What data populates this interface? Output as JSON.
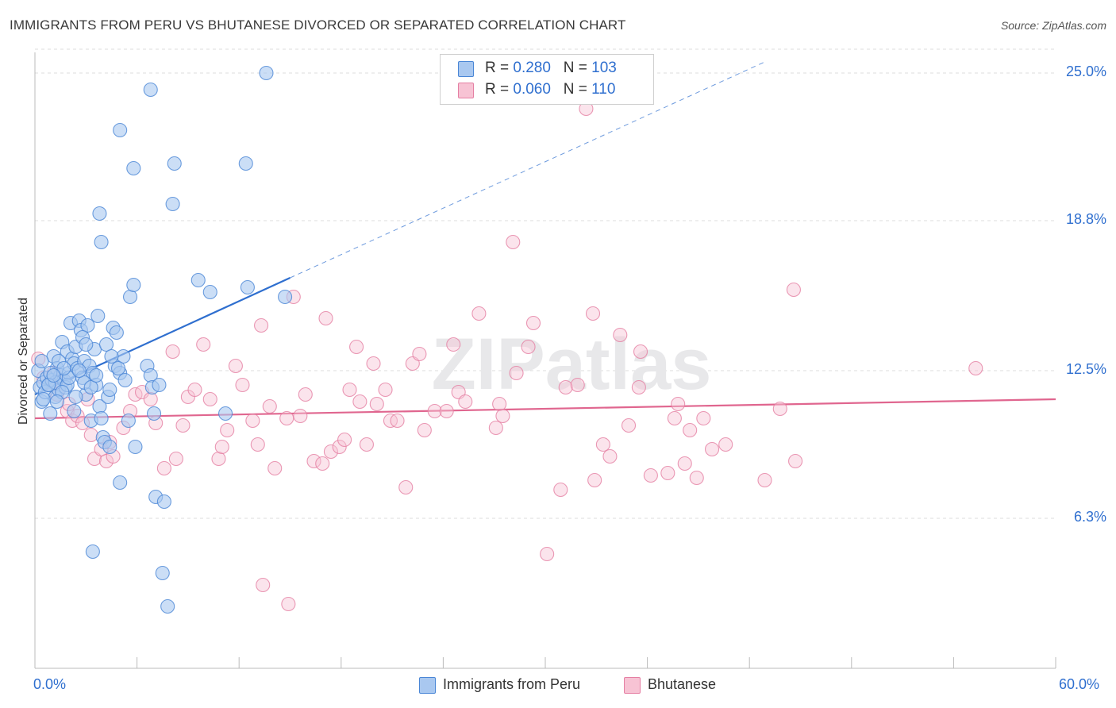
{
  "title": "IMMIGRANTS FROM PERU VS BHUTANESE DIVORCED OR SEPARATED CORRELATION CHART",
  "source": "Source: ZipAtlas.com",
  "watermark": "ZIPatlas",
  "legend": {
    "rows": [
      {
        "r_label": "R = ",
        "r_value": "0.280",
        "n_label": "N = ",
        "n_value": "103",
        "color": "#a9c8f0"
      },
      {
        "r_label": "R = ",
        "r_value": "0.060",
        "n_label": "N = ",
        "n_value": "110",
        "color": "#f5b8cc"
      }
    ]
  },
  "bottom_legend": [
    {
      "label": "Immigrants from Peru",
      "color": "#a9c8f0"
    },
    {
      "label": "Bhutanese",
      "color": "#f5b8cc"
    }
  ],
  "chart_data": {
    "type": "scatter",
    "xlabel": "",
    "ylabel": "Divorced or Separated",
    "x_tick_labels": [
      "0.0%",
      "60.0%"
    ],
    "y_tick_labels": [
      "25.0%",
      "18.8%",
      "12.5%",
      "6.3%"
    ],
    "xlim": [
      0,
      60
    ],
    "ylim": [
      0,
      26
    ],
    "y_ticks": [
      25.0,
      18.8,
      12.5,
      6.3
    ],
    "colors": {
      "peru_fill": "#a9c8f0",
      "peru_stroke": "#4a86d6",
      "peru_line": "#2f6fcf",
      "bhutan_fill": "#f7c3d4",
      "bhutan_stroke": "#e57fa3",
      "bhutan_line": "#e0668f"
    },
    "series": [
      {
        "name": "Immigrants from Peru",
        "trend": {
          "x": [
            0,
            15
          ],
          "y": [
            11.5,
            16.4
          ],
          "dashed_to": [
            43,
            25.5
          ]
        },
        "points": [
          [
            0.2,
            12.5
          ],
          [
            0.3,
            11.8
          ],
          [
            0.4,
            11.2
          ],
          [
            0.5,
            12.0
          ],
          [
            0.6,
            11.6
          ],
          [
            0.7,
            12.2
          ],
          [
            0.8,
            11.9
          ],
          [
            0.9,
            10.7
          ],
          [
            1.0,
            12.1
          ],
          [
            1.1,
            13.1
          ],
          [
            1.2,
            11.4
          ],
          [
            1.3,
            12.6
          ],
          [
            1.4,
            11.7
          ],
          [
            1.5,
            12.3
          ],
          [
            1.6,
            13.7
          ],
          [
            1.7,
            12.1
          ],
          [
            1.8,
            11.8
          ],
          [
            1.9,
            13.3
          ],
          [
            2.0,
            12.4
          ],
          [
            2.1,
            14.5
          ],
          [
            2.2,
            13.0
          ],
          [
            2.3,
            12.8
          ],
          [
            2.4,
            13.5
          ],
          [
            2.5,
            12.6
          ],
          [
            2.6,
            14.6
          ],
          [
            2.7,
            14.2
          ],
          [
            2.8,
            12.2
          ],
          [
            2.9,
            12.9
          ],
          [
            3.0,
            11.5
          ],
          [
            3.1,
            14.4
          ],
          [
            3.2,
            12.7
          ],
          [
            3.3,
            10.4
          ],
          [
            3.4,
            12.4
          ],
          [
            3.5,
            13.4
          ],
          [
            3.6,
            11.9
          ],
          [
            3.7,
            14.8
          ],
          [
            3.8,
            11.0
          ],
          [
            3.9,
            10.5
          ],
          [
            4.0,
            9.7
          ],
          [
            4.1,
            9.5
          ],
          [
            4.2,
            13.6
          ],
          [
            4.3,
            11.4
          ],
          [
            4.4,
            11.7
          ],
          [
            4.6,
            14.3
          ],
          [
            4.7,
            12.7
          ],
          [
            4.8,
            14.1
          ],
          [
            5.0,
            12.4
          ],
          [
            5.2,
            13.1
          ],
          [
            5.3,
            12.1
          ],
          [
            5.5,
            10.4
          ],
          [
            5.6,
            15.6
          ],
          [
            5.8,
            16.1
          ],
          [
            5.0,
            7.8
          ],
          [
            5.9,
            9.3
          ],
          [
            6.6,
            12.7
          ],
          [
            6.8,
            12.3
          ],
          [
            6.9,
            11.8
          ],
          [
            7.0,
            10.7
          ],
          [
            7.3,
            11.9
          ],
          [
            7.1,
            7.2
          ],
          [
            7.6,
            7.0
          ],
          [
            7.5,
            4.0
          ],
          [
            7.8,
            2.6
          ],
          [
            3.4,
            4.9
          ],
          [
            3.8,
            19.1
          ],
          [
            3.9,
            17.9
          ],
          [
            5.0,
            22.6
          ],
          [
            5.8,
            21.0
          ],
          [
            6.8,
            24.3
          ],
          [
            8.2,
            21.2
          ],
          [
            8.1,
            19.5
          ],
          [
            9.6,
            16.3
          ],
          [
            10.3,
            15.8
          ],
          [
            11.2,
            10.7
          ],
          [
            12.4,
            21.2
          ],
          [
            12.5,
            16.0
          ],
          [
            13.6,
            25.0
          ],
          [
            14.7,
            15.6
          ],
          [
            0.5,
            11.3
          ],
          [
            1.2,
            12.0
          ],
          [
            1.9,
            11.9
          ],
          [
            2.3,
            10.8
          ],
          [
            0.9,
            12.4
          ],
          [
            1.4,
            12.9
          ],
          [
            2.0,
            12.2
          ],
          [
            2.9,
            12.0
          ],
          [
            1.7,
            12.6
          ],
          [
            3.3,
            11.8
          ],
          [
            2.6,
            12.5
          ],
          [
            4.5,
            13.1
          ],
          [
            0.4,
            12.9
          ],
          [
            1.6,
            11.6
          ],
          [
            2.4,
            11.4
          ],
          [
            3.6,
            12.3
          ],
          [
            0.8,
            11.9
          ],
          [
            1.1,
            12.3
          ],
          [
            4.9,
            12.6
          ],
          [
            1.3,
            11.2
          ],
          [
            2.8,
            13.9
          ],
          [
            3.0,
            13.6
          ],
          [
            4.4,
            9.3
          ]
        ]
      },
      {
        "name": "Bhutanese",
        "trend": {
          "x": [
            0,
            60
          ],
          "y": [
            10.5,
            11.3
          ]
        },
        "points": [
          [
            0.2,
            13.0
          ],
          [
            0.5,
            12.2
          ],
          [
            0.9,
            11.9
          ],
          [
            1.1,
            12.4
          ],
          [
            1.3,
            11.5
          ],
          [
            1.7,
            12.1
          ],
          [
            1.9,
            10.8
          ],
          [
            2.0,
            11.1
          ],
          [
            2.2,
            10.4
          ],
          [
            2.5,
            10.6
          ],
          [
            2.8,
            10.3
          ],
          [
            3.1,
            11.3
          ],
          [
            3.3,
            9.8
          ],
          [
            3.5,
            8.8
          ],
          [
            3.9,
            9.2
          ],
          [
            4.2,
            8.7
          ],
          [
            4.4,
            9.5
          ],
          [
            4.6,
            8.9
          ],
          [
            5.2,
            10.1
          ],
          [
            5.6,
            10.8
          ],
          [
            5.9,
            11.5
          ],
          [
            6.3,
            11.6
          ],
          [
            6.8,
            11.3
          ],
          [
            7.1,
            10.3
          ],
          [
            7.6,
            8.4
          ],
          [
            8.1,
            13.3
          ],
          [
            8.3,
            8.8
          ],
          [
            8.7,
            10.2
          ],
          [
            9.0,
            11.4
          ],
          [
            9.4,
            11.7
          ],
          [
            9.9,
            13.6
          ],
          [
            10.3,
            11.3
          ],
          [
            10.8,
            8.8
          ],
          [
            11.0,
            9.3
          ],
          [
            11.3,
            10.0
          ],
          [
            11.8,
            12.7
          ],
          [
            12.2,
            11.9
          ],
          [
            12.8,
            10.4
          ],
          [
            13.1,
            9.4
          ],
          [
            13.3,
            14.4
          ],
          [
            13.8,
            11.0
          ],
          [
            14.1,
            8.4
          ],
          [
            14.8,
            10.5
          ],
          [
            15.2,
            15.6
          ],
          [
            15.6,
            10.6
          ],
          [
            15.9,
            11.5
          ],
          [
            16.4,
            8.7
          ],
          [
            16.9,
            8.6
          ],
          [
            17.1,
            14.7
          ],
          [
            17.4,
            9.1
          ],
          [
            17.9,
            9.3
          ],
          [
            18.2,
            9.6
          ],
          [
            18.5,
            11.7
          ],
          [
            18.9,
            13.5
          ],
          [
            19.1,
            11.2
          ],
          [
            19.5,
            9.4
          ],
          [
            19.9,
            12.8
          ],
          [
            20.1,
            11.1
          ],
          [
            20.6,
            11.7
          ],
          [
            20.9,
            10.4
          ],
          [
            21.3,
            10.4
          ],
          [
            21.8,
            7.6
          ],
          [
            22.2,
            12.8
          ],
          [
            22.6,
            13.2
          ],
          [
            22.9,
            10.0
          ],
          [
            23.5,
            10.8
          ],
          [
            24.2,
            10.8
          ],
          [
            24.6,
            13.6
          ],
          [
            24.9,
            11.6
          ],
          [
            25.3,
            11.2
          ],
          [
            26.1,
            14.9
          ],
          [
            27.1,
            10.1
          ],
          [
            27.3,
            11.1
          ],
          [
            27.5,
            10.6
          ],
          [
            28.1,
            17.9
          ],
          [
            28.3,
            12.4
          ],
          [
            29.0,
            13.5
          ],
          [
            29.3,
            14.5
          ],
          [
            30.1,
            4.8
          ],
          [
            30.9,
            7.5
          ],
          [
            31.2,
            11.8
          ],
          [
            32.4,
            23.5
          ],
          [
            31.9,
            11.9
          ],
          [
            32.8,
            14.9
          ],
          [
            32.9,
            7.9
          ],
          [
            33.4,
            9.4
          ],
          [
            33.8,
            8.9
          ],
          [
            34.4,
            14.0
          ],
          [
            34.9,
            10.2
          ],
          [
            35.5,
            11.8
          ],
          [
            35.6,
            13.3
          ],
          [
            36.2,
            8.1
          ],
          [
            37.2,
            8.2
          ],
          [
            37.6,
            10.5
          ],
          [
            37.8,
            11.1
          ],
          [
            38.2,
            8.6
          ],
          [
            38.5,
            10.0
          ],
          [
            38.9,
            8.0
          ],
          [
            39.3,
            10.5
          ],
          [
            39.8,
            9.2
          ],
          [
            40.6,
            9.4
          ],
          [
            42.9,
            7.9
          ],
          [
            43.8,
            10.9
          ],
          [
            44.6,
            15.9
          ],
          [
            44.7,
            8.7
          ],
          [
            55.3,
            12.6
          ],
          [
            13.4,
            3.5
          ],
          [
            14.9,
            2.7
          ]
        ]
      }
    ]
  }
}
